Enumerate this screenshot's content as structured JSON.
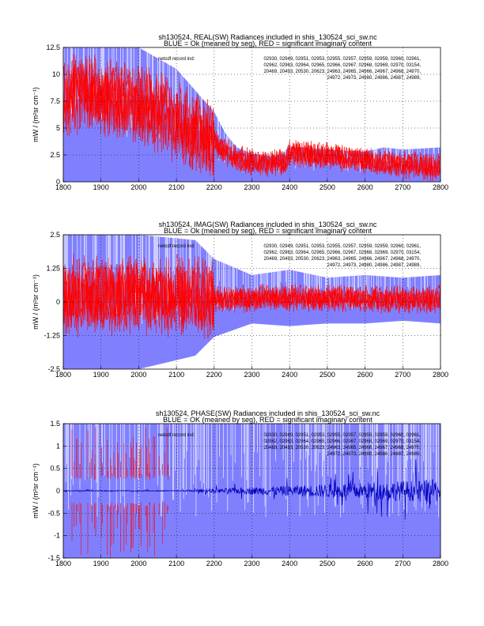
{
  "figure": {
    "background": "#ffffff",
    "colors": {
      "blue_fill": "#8080ff",
      "red_line": "#ff0000",
      "dark_blue_line": "#0000c0"
    }
  },
  "chart_data": [
    {
      "type": "area",
      "title": "sh130524, REAL(SW) Radiances included in shis_130524_sci_sw.nc",
      "subtitle": "BLUE = Ok (meaned by seg), RED = significant imaginary content",
      "ylabel": "mW / (m²sr cm⁻¹)",
      "xlim": [
        1800,
        2800
      ],
      "ylim": [
        0,
        12.5
      ],
      "x_ticks": [
        1800,
        1900,
        2000,
        2100,
        2200,
        2300,
        2400,
        2500,
        2600,
        2700,
        2800
      ],
      "y_ticks": [
        0,
        2.5,
        5,
        7.5,
        10,
        12.5
      ],
      "y_tick_labels": [
        "0",
        "2.5",
        "5",
        "7.5",
        "10",
        "12.5"
      ],
      "grid": true,
      "annotation_label": "netcdf record ind:",
      "annotation_lines": [
        "02930, 02949, 02951, 02953, 02955, 02957, 02959, 02959, 02960, 02961,",
        "02962, 02963, 02964, 02965, 02966, 02967, 02968, 02969, 02970, 03154,",
        "20469, 20493, 20530, 20623, 24963, 24965, 24966, 24967, 24968, 24970,",
        "24972, 24973, 24980, 24986, 24987, 24989,"
      ],
      "series": [
        {
          "name": "BLUE",
          "envelope_upper": [
            [
              1800,
              12.5
            ],
            [
              1900,
              12.5
            ],
            [
              2000,
              12.5
            ],
            [
              2100,
              10.5
            ],
            [
              2150,
              8.5
            ],
            [
              2200,
              6.5
            ],
            [
              2230,
              4.5
            ],
            [
              2260,
              3.2
            ],
            [
              2300,
              2.6
            ],
            [
              2350,
              2.4
            ],
            [
              2380,
              2.6
            ],
            [
              2400,
              3.3
            ],
            [
              2500,
              3.0
            ],
            [
              2600,
              2.8
            ],
            [
              2650,
              3.2
            ],
            [
              2700,
              3.0
            ],
            [
              2800,
              3.2
            ]
          ],
          "envelope_lower": [
            [
              1800,
              0
            ],
            [
              2800,
              0
            ]
          ]
        },
        {
          "name": "RED",
          "mean": [
            [
              1800,
              7.5
            ],
            [
              1850,
              8.5
            ],
            [
              1900,
              8.0
            ],
            [
              1950,
              7.5
            ],
            [
              2000,
              7.0
            ],
            [
              2050,
              6.5
            ],
            [
              2100,
              5.5
            ],
            [
              2150,
              4.5
            ],
            [
              2200,
              3.8
            ],
            [
              2220,
              3.0
            ],
            [
              2250,
              2.3
            ],
            [
              2300,
              1.8
            ],
            [
              2350,
              1.7
            ],
            [
              2390,
              1.8
            ],
            [
              2400,
              2.7
            ],
            [
              2500,
              2.4
            ],
            [
              2600,
              2.0
            ],
            [
              2700,
              1.6
            ],
            [
              2800,
              1.3
            ]
          ]
        }
      ]
    },
    {
      "type": "area",
      "title": "sh130524, IMAG(SW) Radiances included in shis_130524_sci_sw.nc",
      "subtitle": "BLUE = Ok (meaned by seg), RED = significant imaginary content",
      "ylabel": "mW / (m²sr cm⁻¹)",
      "xlim": [
        1800,
        2800
      ],
      "ylim": [
        -2.5,
        2.5
      ],
      "x_ticks": [
        1800,
        1900,
        2000,
        2100,
        2200,
        2300,
        2400,
        2500,
        2600,
        2700,
        2800
      ],
      "y_ticks": [
        -2.5,
        -1.25,
        0,
        1.25,
        2.5
      ],
      "y_tick_labels": [
        "-2.5",
        "-1.25",
        "0",
        "1.25",
        "2.5"
      ],
      "grid": true,
      "annotation_label": "netcdf record ind:",
      "annotation_lines": [
        "02930, 02949, 02951, 02953, 02955, 02957, 02959, 02959, 02960, 02961,",
        "02962, 02963, 02964, 02965, 02966, 02967, 02968, 02969, 02970, 03154,",
        "20469, 20493, 20530, 20623, 24963, 24965, 24966, 24967, 24968, 24970,",
        "24972, 24973, 24980, 24986, 24987, 24989,"
      ],
      "series": [
        {
          "name": "BLUE",
          "envelope_upper": [
            [
              1800,
              2.5
            ],
            [
              2000,
              2.5
            ],
            [
              2150,
              2.3
            ],
            [
              2200,
              1.6
            ],
            [
              2300,
              1.0
            ],
            [
              2400,
              1.2
            ],
            [
              2500,
              0.9
            ],
            [
              2600,
              1.0
            ],
            [
              2700,
              0.9
            ],
            [
              2800,
              1.0
            ]
          ],
          "envelope_lower": [
            [
              1800,
              -2.5
            ],
            [
              2000,
              -2.5
            ],
            [
              2150,
              -2.0
            ],
            [
              2200,
              -1.3
            ],
            [
              2300,
              -0.8
            ],
            [
              2400,
              -0.9
            ],
            [
              2500,
              -0.8
            ],
            [
              2600,
              -0.8
            ],
            [
              2700,
              -0.7
            ],
            [
              2800,
              -0.8
            ]
          ]
        },
        {
          "name": "RED",
          "mean": [
            [
              1800,
              0.2
            ],
            [
              2000,
              0.3
            ],
            [
              2200,
              0.1
            ],
            [
              2400,
              0.15
            ],
            [
              2600,
              0.1
            ],
            [
              2800,
              0.1
            ]
          ]
        }
      ]
    },
    {
      "type": "area",
      "title": "sh130524, PHASE(SW) Radiances included in shis_130524_sci_sw.nc",
      "subtitle": "BLUE = OK (meaned by seg), RED = significant imaginary content",
      "ylabel": "mW / (m²sr cm⁻¹)",
      "xlim": [
        1800,
        2800
      ],
      "ylim": [
        -1.5,
        1.5
      ],
      "x_ticks": [
        1800,
        1900,
        2000,
        2100,
        2200,
        2300,
        2400,
        2500,
        2600,
        2700,
        2800
      ],
      "y_ticks": [
        -1.5,
        -1,
        -0.5,
        0,
        0.5,
        1,
        1.5
      ],
      "y_tick_labels": [
        "-1.5",
        "-1",
        "-0.5",
        "0",
        "0.5",
        "1",
        "1.5"
      ],
      "grid": true,
      "annotation_label": "netcdf record ind:",
      "annotation_lines": [
        "02930, 02949, 02951, 02953, 02955, 02957, 02959, 02959, 02960, 02961,",
        "02962, 02963, 02964, 02965, 02966, 02967, 02968, 02969, 02970, 03154,",
        "20469, 20493, 20530, 20623, 24963, 24965, 24966, 24967, 24968, 24970,",
        "24972, 24973, 24980, 24986, 24987, 24989,"
      ],
      "series": [
        {
          "name": "BLUE",
          "envelope_upper": [
            [
              1800,
              1.5
            ],
            [
              2800,
              1.5
            ]
          ],
          "envelope_lower": [
            [
              1800,
              -1.5
            ],
            [
              2800,
              -1.5
            ]
          ]
        },
        {
          "name": "RED",
          "mean": [
            [
              1800,
              0
            ],
            [
              2800,
              0
            ]
          ]
        }
      ]
    }
  ]
}
